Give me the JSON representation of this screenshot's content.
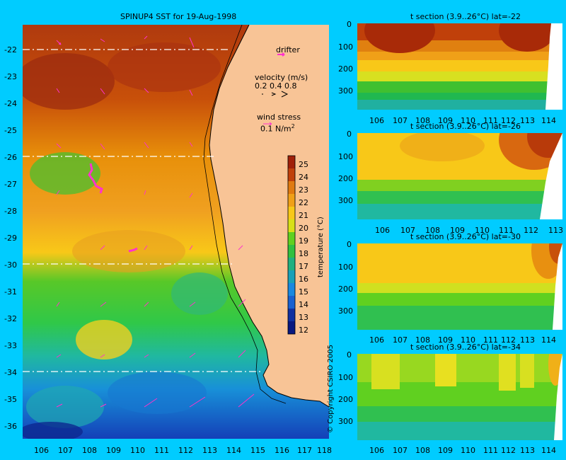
{
  "map": {
    "title": "SPINUP4 SST for 19-Aug-1998",
    "lon_ticks": [
      "106",
      "107",
      "108",
      "109",
      "110",
      "111",
      "112",
      "113",
      "114",
      "115",
      "116",
      "117",
      "118"
    ],
    "lat_ticks": [
      "-22",
      "-23",
      "-24",
      "-25",
      "-26",
      "-27",
      "-28",
      "-29",
      "-30",
      "-31",
      "-32",
      "-33",
      "-34",
      "-35",
      "-36"
    ],
    "dashed_lats": [
      "-22",
      "-26",
      "-30",
      "-34"
    ],
    "legend": {
      "drifter": "drifter",
      "velocity_title": "velocity (m/s)",
      "velocity_scale": "0.2 0.4 0.8",
      "wind_title": "wind stress",
      "wind_value": "0.1 N/m",
      "wind_sup": "2"
    },
    "colorbar": {
      "title": "temperature (°C)",
      "ticks": [
        "25",
        "24",
        "23",
        "22",
        "21",
        "20",
        "19",
        "18",
        "17",
        "16",
        "15",
        "14",
        "13",
        "12"
      ]
    },
    "copyright": "© Copyright CSIRO 2005",
    "colors": {
      "land": "#f8c496",
      "background": "#00ccff",
      "vector": "#ff33cc"
    }
  },
  "sections": [
    {
      "title": "t section (3.9..26°C) lat=-22",
      "x_ticks": [
        "106",
        "107",
        "108",
        "109",
        "110",
        "111",
        "112",
        "113",
        "114"
      ],
      "y_ticks": [
        "0",
        "100",
        "200",
        "300"
      ]
    },
    {
      "title": "t section (3.9..26°C) lat=-26",
      "x_ticks": [
        "106",
        "107",
        "108",
        "109",
        "110",
        "111",
        "112",
        "113"
      ],
      "y_ticks": [
        "0",
        "100",
        "200",
        "300"
      ]
    },
    {
      "title": "t section (3.9..26°C) lat=-30",
      "x_ticks": [
        "106",
        "107",
        "108",
        "109",
        "110",
        "111",
        "112",
        "113",
        "114"
      ],
      "y_ticks": [
        "0",
        "100",
        "200",
        "300"
      ]
    },
    {
      "title": "t section (3.9..26°C) lat=-34",
      "x_ticks": [
        "106",
        "107",
        "108",
        "109",
        "110",
        "111",
        "112",
        "113",
        "114"
      ],
      "y_ticks": [
        "0",
        "100",
        "200",
        "300"
      ]
    }
  ]
}
